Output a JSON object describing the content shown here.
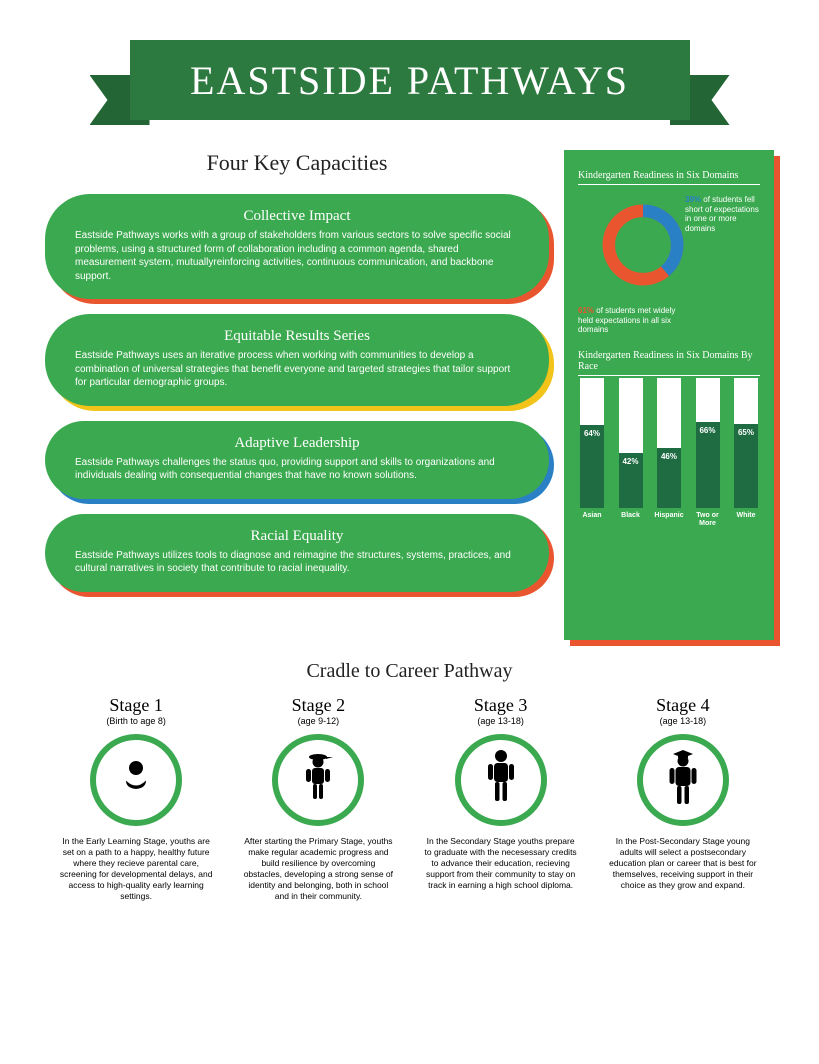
{
  "banner": {
    "title": "EASTSIDE PATHWAYS",
    "bg": "#2c7a3f",
    "shadow": "#236534"
  },
  "capacities_title": "Four Key Capacities",
  "capacities": [
    {
      "title": "Collective Impact",
      "body": "Eastside Pathways works with a group of stakeholders from various sectors to solve specific social problems, using a structured form of collaboration including a common agenda, shared measurement system, mutuallyreinforcing activities, continuous communication, and backbone support.",
      "shadow": "#e8552f"
    },
    {
      "title": "Equitable Results Series",
      "body": "Eastside Pathways uses an iterative process when working with communities to develop a combination of universal strategies that benefit everyone and targeted strategies that tailor support for particular demographic groups.",
      "shadow": "#f2c318"
    },
    {
      "title": "Adaptive Leadership",
      "body": "Eastside Pathways challenges the status quo, providing support and skills to organizations and individuals dealing with consequential changes that have no known solutions.",
      "shadow": "#2980c4"
    },
    {
      "title": "Racial Equality",
      "body": "Eastside Pathways utilizes tools to diagnose and reimagine the structures, systems, practices, and cultural narratives in society that contribute to racial inequality.",
      "shadow": "#e8552f"
    }
  ],
  "sidebar": {
    "donut_title": "Kindergarten Readiness in Six Domains",
    "donut": {
      "pct_short": "39%",
      "pct_short_color": "#2980c4",
      "text_short": " of students fell short of expectations in one or more domains",
      "pct_met": "61%",
      "pct_met_color": "#e8552f",
      "text_met": " of students met widely held expectations in all six domains",
      "slice_deg": 140
    },
    "bars_title": "Kindergarten Readiness in Six Domains By Race",
    "bars": [
      {
        "label": "Asian",
        "value": 64
      },
      {
        "label": "Black",
        "value": 42
      },
      {
        "label": "Hispanic",
        "value": 46
      },
      {
        "label": "Two or More",
        "value": 66
      },
      {
        "label": "White",
        "value": 65
      }
    ],
    "bar_fill_color": "#1f6b42",
    "bar_bg_color": "#ffffff"
  },
  "pathway": {
    "title": "Cradle to Career Pathway",
    "stages": [
      {
        "name": "Stage 1",
        "age": "(Birth to age 8)",
        "desc": "In the Early Learning Stage, youths are set on a path to a happy, healthy future where they recieve parental care, screening for developmental delays, and access to high-quality early learning settings."
      },
      {
        "name": "Stage 2",
        "age": "(age 9-12)",
        "desc": "After starting the Primary Stage, youths make regular academic progress and build resilience by overcoming obstacles, developing a strong sense of identity and belonging, both in school and in their community."
      },
      {
        "name": "Stage 3",
        "age": "(age 13-18)",
        "desc": "In the Secondary Stage youths prepare to graduate with the necesessary credits to advance their education, recieving support from their community to stay on track in earning a high school diploma."
      },
      {
        "name": "Stage 4",
        "age": "(age 13-18)",
        "desc": "In the Post-Secondary Stage young adults will select a postsecondary education plan or career that is best for themselves, receiving support in their choice as they grow and expand."
      }
    ],
    "circle_border": "#3ba94f"
  }
}
